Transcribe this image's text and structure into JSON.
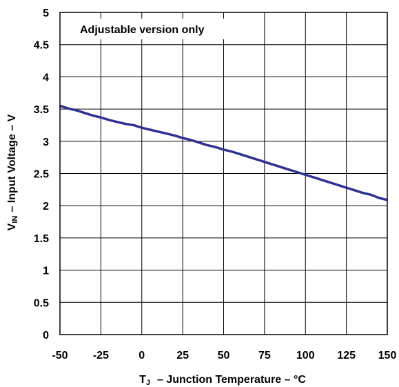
{
  "chart_data": {
    "type": "line",
    "annotation": "Adjustable version only",
    "xlabel": {
      "main": "T",
      "sub": "J",
      "rest": "– Junction Temperature – °C"
    },
    "ylabel": {
      "main": "V",
      "sub": "IN",
      "rest": "– Input Voltage – V"
    },
    "xlim": [
      -50,
      150
    ],
    "ylim": [
      0,
      5
    ],
    "xticks": [
      -50,
      -25,
      0,
      25,
      50,
      75,
      100,
      125,
      150
    ],
    "yticks": [
      0,
      0.5,
      1,
      1.5,
      2,
      2.5,
      3,
      3.5,
      4,
      4.5,
      5
    ],
    "xtick_labels": [
      "-50",
      "-25",
      "0",
      "25",
      "50",
      "75",
      "100",
      "125",
      "150"
    ],
    "ytick_labels": [
      "0",
      "0.5",
      "1",
      "1.5",
      "2",
      "2.5",
      "3",
      "3.5",
      "4",
      "4.5",
      "5"
    ],
    "grid": true,
    "line_color": "#2e3192",
    "series": [
      {
        "x": [
          -50,
          -45,
          -40,
          -35,
          -30,
          -25,
          -20,
          -15,
          -10,
          -5,
          0,
          5,
          10,
          15,
          20,
          25,
          30,
          35,
          40,
          45,
          50,
          55,
          60,
          65,
          70,
          75,
          80,
          85,
          90,
          95,
          100,
          105,
          110,
          115,
          120,
          125,
          130,
          135,
          140,
          145,
          150
        ],
        "y": [
          3.55,
          3.51,
          3.48,
          3.44,
          3.4,
          3.37,
          3.33,
          3.3,
          3.27,
          3.25,
          3.21,
          3.18,
          3.15,
          3.12,
          3.09,
          3.05,
          3.02,
          2.98,
          2.94,
          2.91,
          2.87,
          2.84,
          2.8,
          2.76,
          2.72,
          2.68,
          2.64,
          2.6,
          2.56,
          2.52,
          2.48,
          2.44,
          2.4,
          2.36,
          2.32,
          2.28,
          2.24,
          2.2,
          2.17,
          2.12,
          2.09
        ]
      }
    ]
  }
}
